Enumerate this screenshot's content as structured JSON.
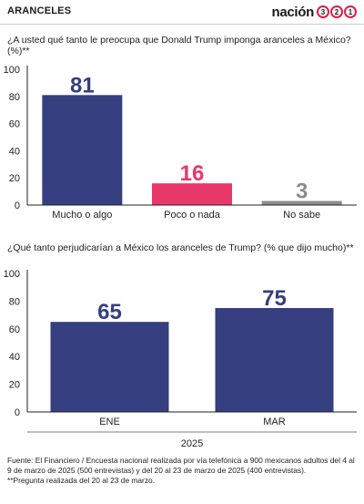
{
  "header": {
    "section": "ARANCELES",
    "brand": "nación",
    "brand_digits": [
      "3",
      "2",
      "1"
    ]
  },
  "chart1": {
    "question": "¿A usted qué tanto le preocupa que Donald Trump imponga aranceles a México?  (%)**"
  },
  "chart2": {
    "question": "¿Qué tanto perjudicarían a México los aranceles de Trump?  (% que dijo mucho)**",
    "group_label": "2025"
  },
  "colors": {
    "navy": "#353f80",
    "pink": "#e8386a",
    "gray": "#8c8c8c"
  },
  "chart_data": [
    {
      "type": "bar",
      "categories": [
        "Mucho o algo",
        "Poco o nada",
        "No sabe"
      ],
      "values": [
        81,
        16,
        3
      ],
      "data_labels": [
        "81",
        "16",
        "3"
      ],
      "colors": [
        "#353f80",
        "#e8386a",
        "#8c8c8c"
      ],
      "ylim": [
        0,
        100
      ],
      "yticks": [
        "0",
        "20",
        "40",
        "60",
        "80",
        "100"
      ],
      "grid": false,
      "legend": "none"
    },
    {
      "type": "bar",
      "categories": [
        "ENE",
        "MAR"
      ],
      "values": [
        65,
        75
      ],
      "data_labels": [
        "65",
        "75"
      ],
      "colors": [
        "#353f80",
        "#353f80"
      ],
      "ylim": [
        0,
        100
      ],
      "yticks": [
        "0",
        "20",
        "40",
        "60",
        "80",
        "100"
      ],
      "grid": false,
      "legend": "none"
    }
  ],
  "footer": {
    "source": "Fuente: El Financiero / Encuesta nacional realizada por vía telefónica a 900 mexicanos adultos del 4 al 9 de marzo de 2025 (500 entrevistas)  y del 20 al 23 de marzo de 2025  (400 entrevistas).",
    "note": "**Pregunta realizada del 20 al 23 de marzo."
  }
}
